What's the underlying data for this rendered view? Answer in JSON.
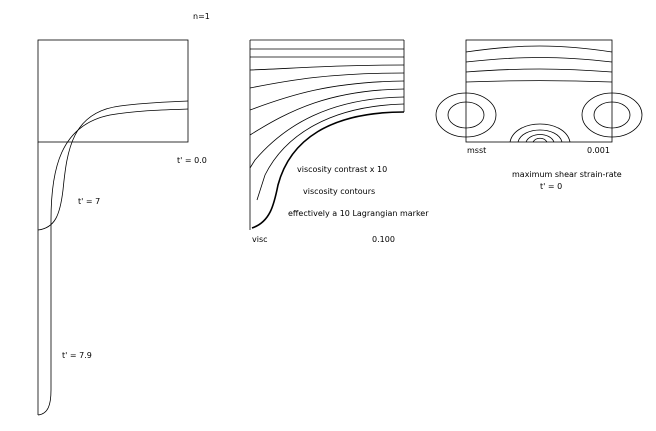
{
  "header": {
    "title": "n=1"
  },
  "panels": [
    {
      "labels": [
        "t' = 0.0",
        "t' = 7",
        "t' = 7.9"
      ]
    },
    {
      "name": "visc",
      "value": "0.100",
      "notes": [
        "viscosity contrast x 10",
        "viscosity contours",
        "effectively a 10 Lagrangian marker"
      ]
    },
    {
      "name": "msst",
      "value": "0.001",
      "notes": [
        "maximum shear strain-rate",
        "t' = 0"
      ]
    }
  ]
}
